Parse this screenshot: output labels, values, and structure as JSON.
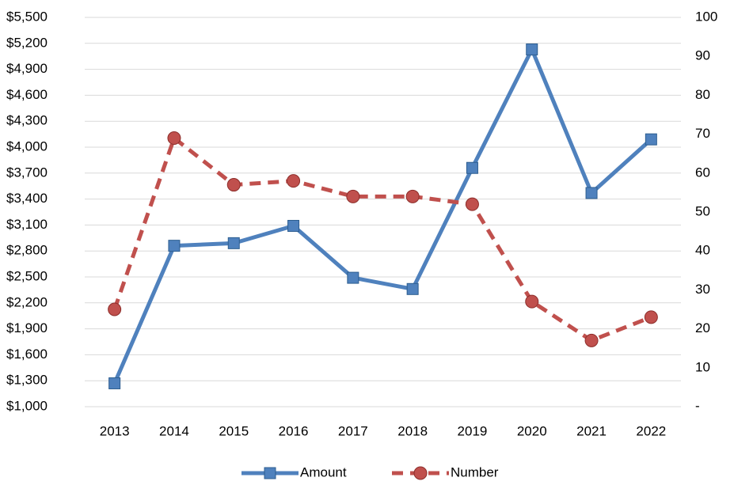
{
  "chart_data": {
    "type": "line",
    "categories": [
      "2013",
      "2014",
      "2015",
      "2016",
      "2017",
      "2018",
      "2019",
      "2020",
      "2021",
      "2022"
    ],
    "series": [
      {
        "name": "Amount",
        "color": "#4f81bd",
        "marker": "square",
        "dashed": false,
        "values": [
          1270,
          2860,
          2890,
          3090,
          2490,
          2360,
          3760,
          5130,
          3470,
          4090
        ]
      },
      {
        "name": "Number",
        "color": "#c0504d",
        "marker": "circle",
        "dashed": true,
        "axis": "y2",
        "values": [
          25,
          69,
          57,
          58,
          54,
          54,
          52,
          27,
          17,
          23
        ]
      }
    ],
    "ylim": [
      1000,
      5500
    ],
    "yticks": [
      {
        "value": 1000,
        "label": "$1,000"
      },
      {
        "value": 1300,
        "label": "$1,300"
      },
      {
        "value": 1600,
        "label": "$1,600"
      },
      {
        "value": 1900,
        "label": "$1,900"
      },
      {
        "value": 2200,
        "label": "$2,200"
      },
      {
        "value": 2500,
        "label": "$2,500"
      },
      {
        "value": 2800,
        "label": "$2,800"
      },
      {
        "value": 3100,
        "label": "$3,100"
      },
      {
        "value": 3400,
        "label": "$3,400"
      },
      {
        "value": 3700,
        "label": "$3,700"
      },
      {
        "value": 4000,
        "label": "$4,000"
      },
      {
        "value": 4300,
        "label": "$4,300"
      },
      {
        "value": 4600,
        "label": "$4,600"
      },
      {
        "value": 4900,
        "label": "$4,900"
      },
      {
        "value": 5200,
        "label": "$5,200"
      },
      {
        "value": 5500,
        "label": "$5,500"
      }
    ],
    "y2lim": [
      0,
      100
    ],
    "y2ticks": [
      {
        "value": 0,
        "label": "-"
      },
      10,
      20,
      30,
      40,
      50,
      60,
      70,
      80,
      90,
      100
    ],
    "grid": true,
    "legend": "bottom"
  }
}
